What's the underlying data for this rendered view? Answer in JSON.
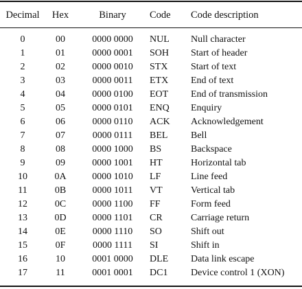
{
  "table": {
    "headers": {
      "decimal": "Decimal",
      "hex": "Hex",
      "binary": "Binary",
      "code": "Code",
      "description": "Code description"
    },
    "rows": [
      {
        "decimal": "0",
        "hex": "00",
        "binary": "0000 0000",
        "code": "NUL",
        "description": "Null character"
      },
      {
        "decimal": "1",
        "hex": "01",
        "binary": "0000 0001",
        "code": "SOH",
        "description": "Start of header"
      },
      {
        "decimal": "2",
        "hex": "02",
        "binary": "0000 0010",
        "code": "STX",
        "description": "Start of text"
      },
      {
        "decimal": "3",
        "hex": "03",
        "binary": "0000 0011",
        "code": "ETX",
        "description": "End of text"
      },
      {
        "decimal": "4",
        "hex": "04",
        "binary": "0000 0100",
        "code": "EOT",
        "description": "End of transmission"
      },
      {
        "decimal": "5",
        "hex": "05",
        "binary": "0000 0101",
        "code": "ENQ",
        "description": "Enquiry"
      },
      {
        "decimal": "6",
        "hex": "06",
        "binary": "0000 0110",
        "code": "ACK",
        "description": "Acknowledgement"
      },
      {
        "decimal": "7",
        "hex": "07",
        "binary": "0000 0111",
        "code": "BEL",
        "description": "Bell"
      },
      {
        "decimal": "8",
        "hex": "08",
        "binary": "0000 1000",
        "code": "BS",
        "description": "Backspace"
      },
      {
        "decimal": "9",
        "hex": "09",
        "binary": "0000 1001",
        "code": "HT",
        "description": "Horizontal tab"
      },
      {
        "decimal": "10",
        "hex": "0A",
        "binary": "0000 1010",
        "code": "LF",
        "description": "Line feed"
      },
      {
        "decimal": "11",
        "hex": "0B",
        "binary": "0000 1011",
        "code": "VT",
        "description": "Vertical tab"
      },
      {
        "decimal": "12",
        "hex": "0C",
        "binary": "0000 1100",
        "code": "FF",
        "description": "Form feed"
      },
      {
        "decimal": "13",
        "hex": "0D",
        "binary": "0000 1101",
        "code": "CR",
        "description": "Carriage return"
      },
      {
        "decimal": "14",
        "hex": "0E",
        "binary": "0000 1110",
        "code": "SO",
        "description": "Shift out"
      },
      {
        "decimal": "15",
        "hex": "0F",
        "binary": "0000 1111",
        "code": "SI",
        "description": "Shift in"
      },
      {
        "decimal": "16",
        "hex": "10",
        "binary": "0001 0000",
        "code": "DLE",
        "description": "Data link escape"
      },
      {
        "decimal": "17",
        "hex": "11",
        "binary": "0001 0001",
        "code": "DC1",
        "description": "Device control 1 (XON)"
      }
    ]
  }
}
